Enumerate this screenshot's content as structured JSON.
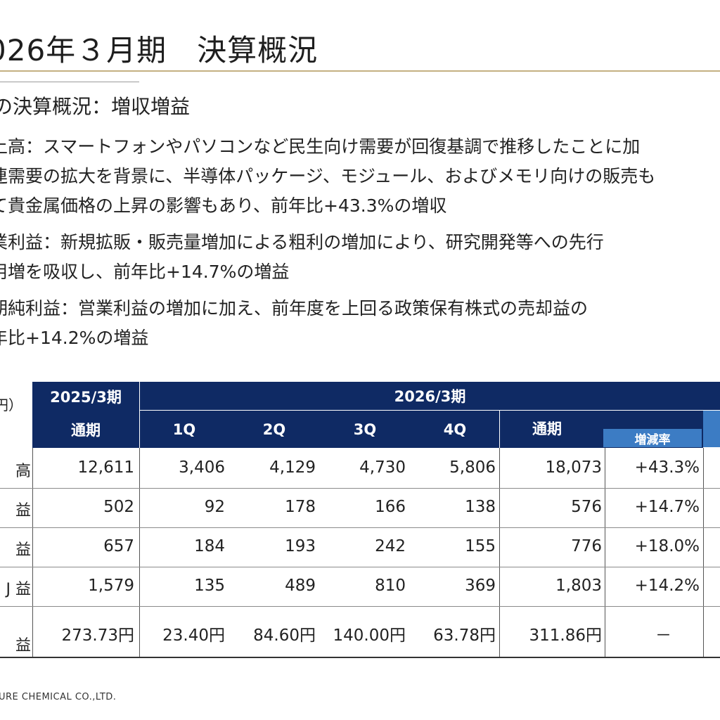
{
  "header": {
    "title": "026年３月期　決算概況"
  },
  "summary": {
    "subtitle": "の決算概況：増収増益",
    "paragraphs": [
      [
        "上高：スマートフォンやパソコンなど民生向け需要が回復基調で推移したことに加",
        "連需要の拡大を背景に、半導体パッケージ、モジュール、およびメモリ向けの販売も",
        "て貴金属価格の上昇の影響もあり、前年比+43.3%の増収"
      ],
      [
        "業利益：新規拡販・販売量増加による粗利の増加により、研究開発等への先行",
        "用増を吸収し、前年比+14.7%の増益"
      ],
      [
        "期純利益：営業利益の増加に加え、前年度を上回る政策保有株式の売却益の",
        "年比+14.2%の増益"
      ]
    ]
  },
  "table": {
    "unit_label": "円）",
    "header_2025": "2025/3期",
    "header_2026": "2026/3期",
    "sub_headers": [
      "通期",
      "1Q",
      "2Q",
      "3Q",
      "4Q",
      "通期"
    ],
    "change_rate_label": "増減率",
    "rows": [
      {
        "label": "高",
        "values": [
          "12,611",
          "3,406",
          "4,129",
          "4,730",
          "5,806",
          "18,073",
          "+43.3%"
        ]
      },
      {
        "label": "益",
        "values": [
          "502",
          "92",
          "178",
          "166",
          "138",
          "576",
          "+14.7%"
        ]
      },
      {
        "label": "益",
        "values": [
          "657",
          "184",
          "193",
          "242",
          "155",
          "776",
          "+18.0%"
        ]
      },
      {
        "label": "J 益",
        "values": [
          "1,579",
          "135",
          "489",
          "810",
          "369",
          "1,803",
          "+14.2%"
        ]
      },
      {
        "label": "益",
        "values": [
          "273.73円",
          "23.40円",
          "84.60円",
          "140.00円",
          "63.78円",
          "311.86円",
          "－"
        ]
      }
    ]
  },
  "footer": {
    "company": "URE CHEMICAL CO.,LTD."
  },
  "colors": {
    "header_navy": "#0f2a64",
    "accent_blue": "#3c7cc4",
    "title_rule_gold": "#c4b081"
  }
}
